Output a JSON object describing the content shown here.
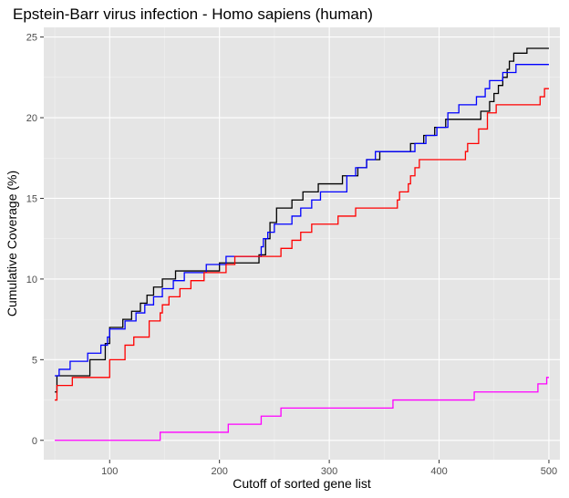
{
  "chart_data": {
    "type": "line",
    "step": true,
    "title": "Epstein-Barr virus infection - Homo sapiens (human)",
    "xlabel": "Cutoff of sorted gene list",
    "ylabel": "Cumulative Coverage (%)",
    "xlim": [
      40,
      510
    ],
    "ylim": [
      -1.2,
      25.6
    ],
    "xticks": [
      100,
      200,
      300,
      400,
      500
    ],
    "yticks": [
      0,
      5,
      10,
      15,
      20,
      25
    ],
    "grid": true,
    "legend": "none",
    "background": "#e5e5e5",
    "series": [
      {
        "color": "#000000",
        "points": [
          [
            50,
            3
          ],
          [
            52,
            4
          ],
          [
            80,
            4
          ],
          [
            82,
            5
          ],
          [
            94,
            5
          ],
          [
            96,
            6
          ],
          [
            98,
            6
          ],
          [
            100,
            7
          ],
          [
            110,
            7
          ],
          [
            112,
            7.5
          ],
          [
            118,
            7.5
          ],
          [
            120,
            8
          ],
          [
            126,
            8
          ],
          [
            128,
            8.5
          ],
          [
            132,
            8.5
          ],
          [
            134,
            9
          ],
          [
            138,
            9
          ],
          [
            140,
            9.5
          ],
          [
            146,
            9.5
          ],
          [
            148,
            10
          ],
          [
            156,
            10
          ],
          [
            160,
            10.5
          ],
          [
            196,
            10.5
          ],
          [
            200,
            11
          ],
          [
            230,
            11
          ],
          [
            236,
            11.5
          ],
          [
            242,
            12.5
          ],
          [
            246,
            13.5
          ],
          [
            252,
            14.4
          ],
          [
            262,
            14.4
          ],
          [
            266,
            14.9
          ],
          [
            274,
            14.9
          ],
          [
            276,
            15.4
          ],
          [
            286,
            15.4
          ],
          [
            290,
            15.9
          ],
          [
            308,
            15.9
          ],
          [
            312,
            16.4
          ],
          [
            322,
            16.4
          ],
          [
            326,
            16.9
          ],
          [
            330,
            16.9
          ],
          [
            334,
            17.4
          ],
          [
            342,
            17.4
          ],
          [
            346,
            17.9
          ],
          [
            370,
            17.9
          ],
          [
            374,
            18.4
          ],
          [
            382,
            18.4
          ],
          [
            386,
            18.9
          ],
          [
            392,
            18.9
          ],
          [
            396,
            19.4
          ],
          [
            402,
            19.4
          ],
          [
            406,
            19.9
          ],
          [
            434,
            19.9
          ],
          [
            438,
            20.4
          ],
          [
            444,
            20.4
          ],
          [
            446,
            21
          ],
          [
            450,
            21.5
          ],
          [
            454,
            22
          ],
          [
            458,
            22.5
          ],
          [
            462,
            23
          ],
          [
            464,
            23.5
          ],
          [
            468,
            24
          ],
          [
            476,
            24
          ],
          [
            480,
            24.3
          ],
          [
            500,
            24.3
          ]
        ]
      },
      {
        "color": "#0000ff",
        "points": [
          [
            50,
            4
          ],
          [
            54,
            4.4
          ],
          [
            62,
            4.4
          ],
          [
            64,
            4.9
          ],
          [
            76,
            4.9
          ],
          [
            80,
            5.4
          ],
          [
            88,
            5.4
          ],
          [
            92,
            5.9
          ],
          [
            96,
            5.9
          ],
          [
            98,
            6.4
          ],
          [
            100,
            6.9
          ],
          [
            110,
            6.9
          ],
          [
            114,
            7.4
          ],
          [
            120,
            7.4
          ],
          [
            124,
            7.9
          ],
          [
            128,
            7.9
          ],
          [
            132,
            8.4
          ],
          [
            136,
            8.4
          ],
          [
            140,
            8.9
          ],
          [
            144,
            8.9
          ],
          [
            148,
            9.4
          ],
          [
            154,
            9.4
          ],
          [
            158,
            9.9
          ],
          [
            164,
            9.9
          ],
          [
            168,
            10.4
          ],
          [
            184,
            10.4
          ],
          [
            188,
            10.9
          ],
          [
            202,
            10.9
          ],
          [
            206,
            11.4
          ],
          [
            234,
            11.4
          ],
          [
            238,
            12
          ],
          [
            240,
            12.5
          ],
          [
            244,
            12.9
          ],
          [
            250,
            13.4
          ],
          [
            262,
            13.4
          ],
          [
            266,
            13.9
          ],
          [
            270,
            13.9
          ],
          [
            274,
            14.4
          ],
          [
            280,
            14.4
          ],
          [
            284,
            14.9
          ],
          [
            288,
            14.9
          ],
          [
            292,
            15.4
          ],
          [
            312,
            15.4
          ],
          [
            316,
            16.4
          ],
          [
            320,
            16.4
          ],
          [
            324,
            16.9
          ],
          [
            330,
            16.9
          ],
          [
            334,
            17.4
          ],
          [
            338,
            17.4
          ],
          [
            342,
            17.9
          ],
          [
            374,
            17.9
          ],
          [
            378,
            18.4
          ],
          [
            384,
            18.4
          ],
          [
            388,
            18.9
          ],
          [
            394,
            18.9
          ],
          [
            398,
            19.4
          ],
          [
            404,
            19.4
          ],
          [
            408,
            20.3
          ],
          [
            414,
            20.3
          ],
          [
            418,
            20.8
          ],
          [
            430,
            20.8
          ],
          [
            434,
            21.3
          ],
          [
            438,
            21.3
          ],
          [
            442,
            21.8
          ],
          [
            446,
            22.3
          ],
          [
            454,
            22.3
          ],
          [
            458,
            22.8
          ],
          [
            466,
            22.8
          ],
          [
            470,
            23.3
          ],
          [
            500,
            23.3
          ]
        ]
      },
      {
        "color": "#ff0000",
        "points": [
          [
            50,
            2.5
          ],
          [
            52,
            3.4
          ],
          [
            62,
            3.4
          ],
          [
            66,
            3.9
          ],
          [
            98,
            3.9
          ],
          [
            100,
            5
          ],
          [
            110,
            5
          ],
          [
            114,
            5.9
          ],
          [
            118,
            5.9
          ],
          [
            122,
            6.4
          ],
          [
            132,
            6.4
          ],
          [
            136,
            7.4
          ],
          [
            142,
            7.4
          ],
          [
            146,
            7.9
          ],
          [
            148,
            8.4
          ],
          [
            154,
            8.9
          ],
          [
            160,
            8.9
          ],
          [
            164,
            9.4
          ],
          [
            170,
            9.4
          ],
          [
            174,
            9.9
          ],
          [
            182,
            9.9
          ],
          [
            186,
            10.4
          ],
          [
            202,
            10.4
          ],
          [
            206,
            10.9
          ],
          [
            210,
            10.9
          ],
          [
            214,
            11.4
          ],
          [
            252,
            11.4
          ],
          [
            256,
            11.9
          ],
          [
            262,
            11.9
          ],
          [
            266,
            12.4
          ],
          [
            270,
            12.4
          ],
          [
            274,
            12.9
          ],
          [
            280,
            12.9
          ],
          [
            284,
            13.4
          ],
          [
            304,
            13.4
          ],
          [
            308,
            13.9
          ],
          [
            320,
            13.9
          ],
          [
            324,
            14.4
          ],
          [
            358,
            14.4
          ],
          [
            362,
            14.9
          ],
          [
            364,
            15.4
          ],
          [
            368,
            15.4
          ],
          [
            372,
            15.9
          ],
          [
            374,
            16.4
          ],
          [
            378,
            16.9
          ],
          [
            382,
            17.4
          ],
          [
            420,
            17.4
          ],
          [
            424,
            17.9
          ],
          [
            426,
            18.4
          ],
          [
            432,
            18.4
          ],
          [
            436,
            19.3
          ],
          [
            440,
            19.3
          ],
          [
            444,
            20.3
          ],
          [
            450,
            20.3
          ],
          [
            452,
            20.8
          ],
          [
            488,
            20.8
          ],
          [
            492,
            21.3
          ],
          [
            496,
            21.8
          ],
          [
            500,
            21.8
          ]
        ]
      },
      {
        "color": "#ff00ff",
        "points": [
          [
            50,
            0
          ],
          [
            144,
            0
          ],
          [
            146,
            0.5
          ],
          [
            206,
            0.5
          ],
          [
            208,
            1
          ],
          [
            234,
            1
          ],
          [
            238,
            1.5
          ],
          [
            252,
            1.5
          ],
          [
            256,
            2
          ],
          [
            356,
            2
          ],
          [
            358,
            2.5
          ],
          [
            430,
            2.5
          ],
          [
            432,
            3
          ],
          [
            486,
            3
          ],
          [
            490,
            3.5
          ],
          [
            496,
            3.5
          ],
          [
            498,
            3.9
          ],
          [
            500,
            3.9
          ]
        ]
      }
    ]
  }
}
